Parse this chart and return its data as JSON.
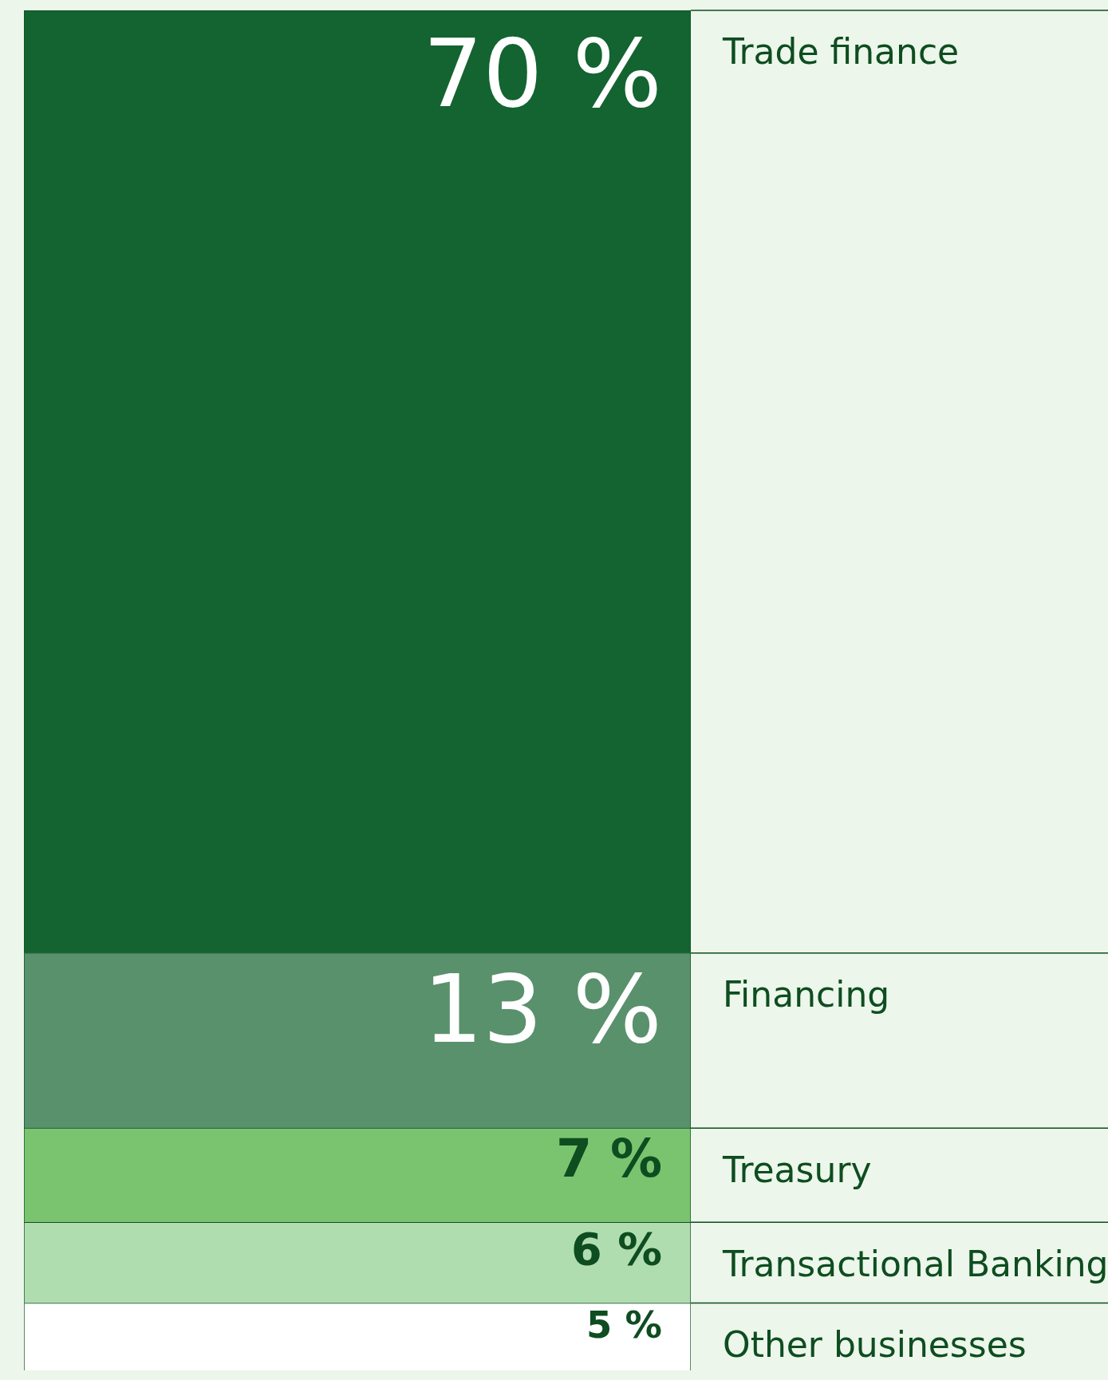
{
  "chart_data": {
    "type": "bar",
    "stacked": true,
    "categories": [
      null
    ],
    "legend": false,
    "tick_labels": false,
    "series": [
      {
        "name": "Other businesses",
        "color": "#ffffff",
        "values": [
          5
        ],
        "value_labels": [
          "5 %"
        ]
      },
      {
        "name": "Transactional Banking",
        "color": "#b0ddb0",
        "values": [
          6
        ],
        "value_labels": [
          "6 %"
        ]
      },
      {
        "name": "Treasury",
        "color": "#7ac470",
        "values": [
          7
        ],
        "value_labels": [
          "7 %"
        ]
      },
      {
        "name": "Financing",
        "color": "#59916c",
        "values": [
          13
        ],
        "value_labels": [
          "13 %"
        ]
      },
      {
        "name": "Trade finance",
        "color": "#136430",
        "values": [
          70
        ],
        "value_labels": [
          "70 %"
        ]
      }
    ]
  }
}
